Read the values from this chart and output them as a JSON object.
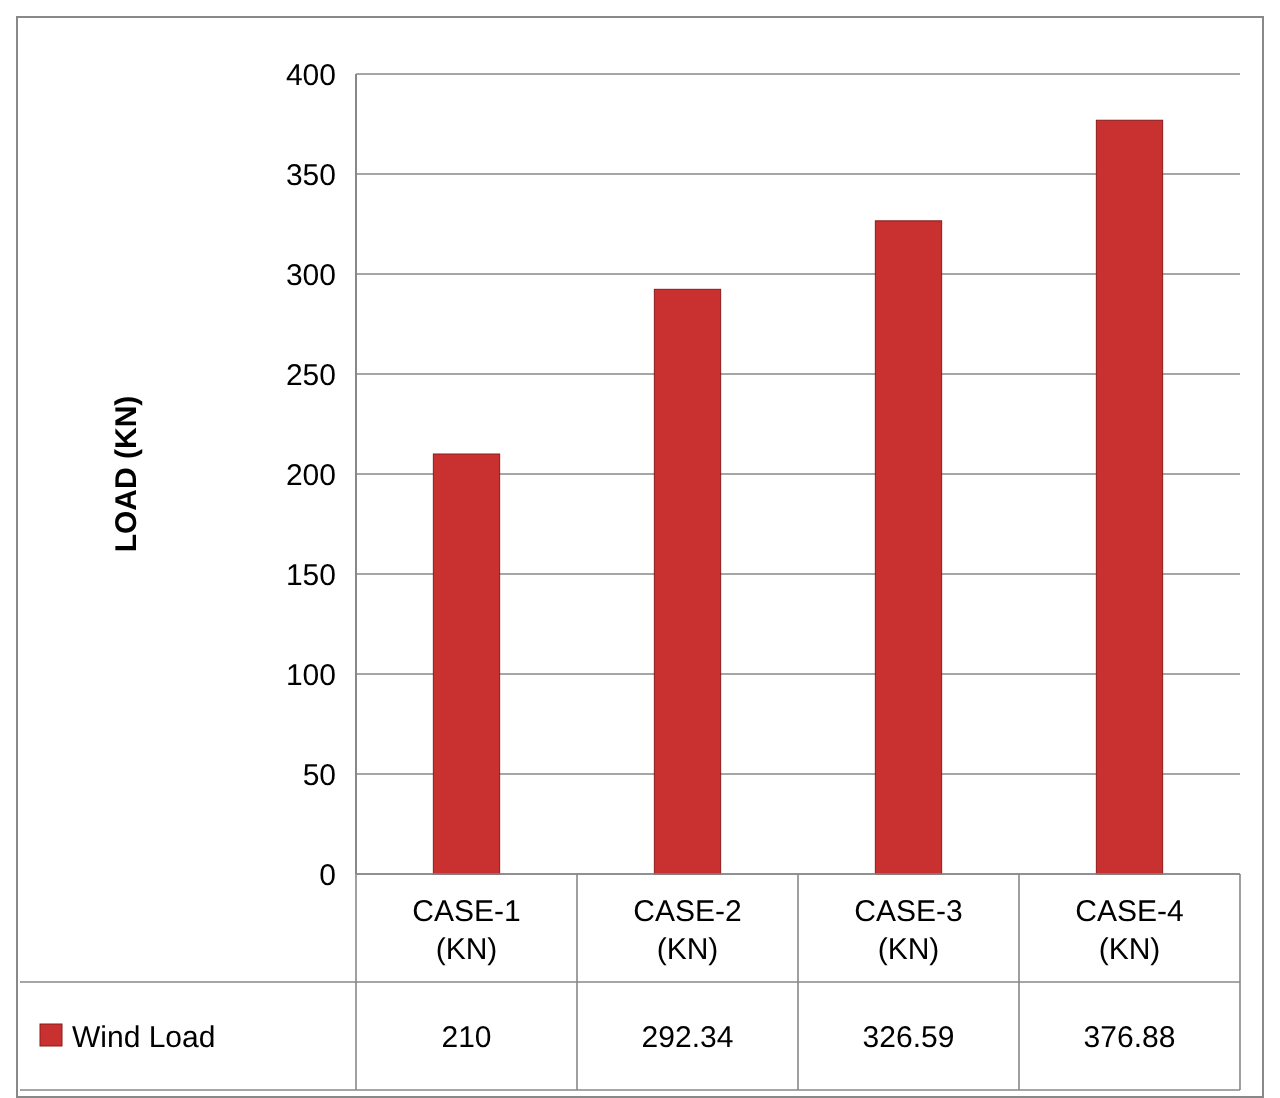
{
  "chart_data": {
    "type": "bar",
    "ylabel": "LOAD (KN)",
    "categories": [
      "CASE-1 (KN)",
      "CASE-2 (KN)",
      "CASE-3 (KN)",
      "CASE-4 (KN)"
    ],
    "series": [
      {
        "name": "Wind Load",
        "color": "#c8312f",
        "values": [
          210,
          292.34,
          326.59,
          376.88
        ]
      }
    ],
    "ylim": [
      0,
      400
    ],
    "yticks": [
      0,
      50,
      100,
      150,
      200,
      250,
      300,
      350,
      400
    ],
    "grid": "y",
    "legend": "bottom",
    "data_labels": true
  }
}
